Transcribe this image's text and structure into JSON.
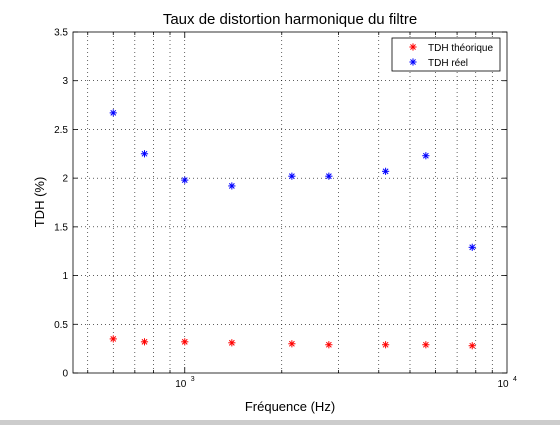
{
  "chart_data": {
    "type": "scatter",
    "title": "Taux de distortion harmonique du filtre",
    "xlabel": "Fréquence (Hz)",
    "ylabel": "TDH (%)",
    "xscale": "log",
    "xlim": [
      450,
      10000
    ],
    "ylim": [
      0,
      3.5
    ],
    "grid": true,
    "legend_position": "top-right",
    "x_tick_labels": [
      {
        "value": 1000,
        "base": "10",
        "exp": "3"
      },
      {
        "value": 10000,
        "base": "10",
        "exp": "4"
      }
    ],
    "y_tick_labels": [
      "0",
      "0.5",
      "1",
      "1.5",
      "2",
      "2.5",
      "3",
      "3.5"
    ],
    "series": [
      {
        "name": "TDH théorique",
        "color": "#ff0000",
        "marker": "asterisk",
        "x": [
          600,
          750,
          1000,
          1400,
          2150,
          2800,
          4200,
          5600,
          7800
        ],
        "y": [
          0.35,
          0.32,
          0.32,
          0.31,
          0.3,
          0.29,
          0.29,
          0.29,
          0.28
        ]
      },
      {
        "name": "TDH réel",
        "color": "#0000ff",
        "marker": "asterisk",
        "x": [
          600,
          750,
          1000,
          1400,
          2150,
          2800,
          4200,
          5600,
          7800
        ],
        "y": [
          2.67,
          2.25,
          1.98,
          1.92,
          2.02,
          2.02,
          2.07,
          2.23,
          1.29
        ]
      }
    ]
  }
}
